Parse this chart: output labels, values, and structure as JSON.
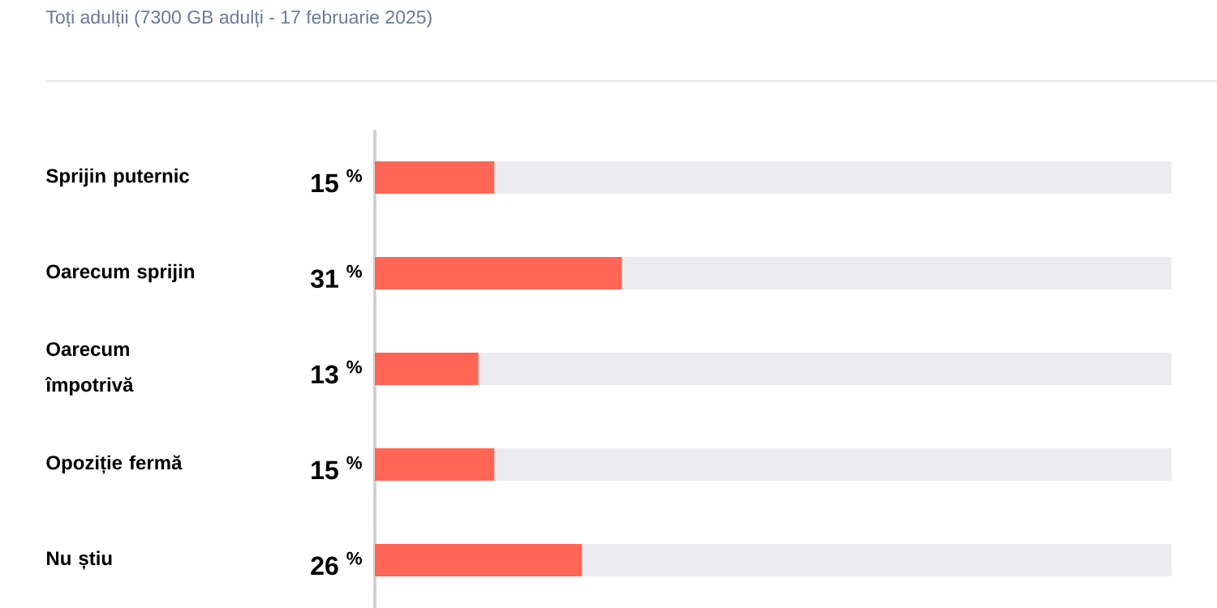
{
  "chart_data": {
    "type": "bar",
    "orientation": "horizontal",
    "subtitle": "Toți adulții (7300 GB adulți - 17 februarie 2025)",
    "categories": [
      "Sprijin puternic",
      "Oarecum sprijin",
      "Oarecum împotrivă",
      "Opoziție fermă",
      "Nu știu"
    ],
    "values": [
      15,
      31,
      13,
      15,
      26
    ],
    "value_labels": [
      "15 $^{%}$",
      "31 $^{%}$",
      "13 $^{%}$",
      "15 $^{%}$",
      "26 $^{%}$"
    ],
    "color": "#ff6656",
    "xlim": [
      0,
      100
    ],
    "tick_labels": "y"
  }
}
